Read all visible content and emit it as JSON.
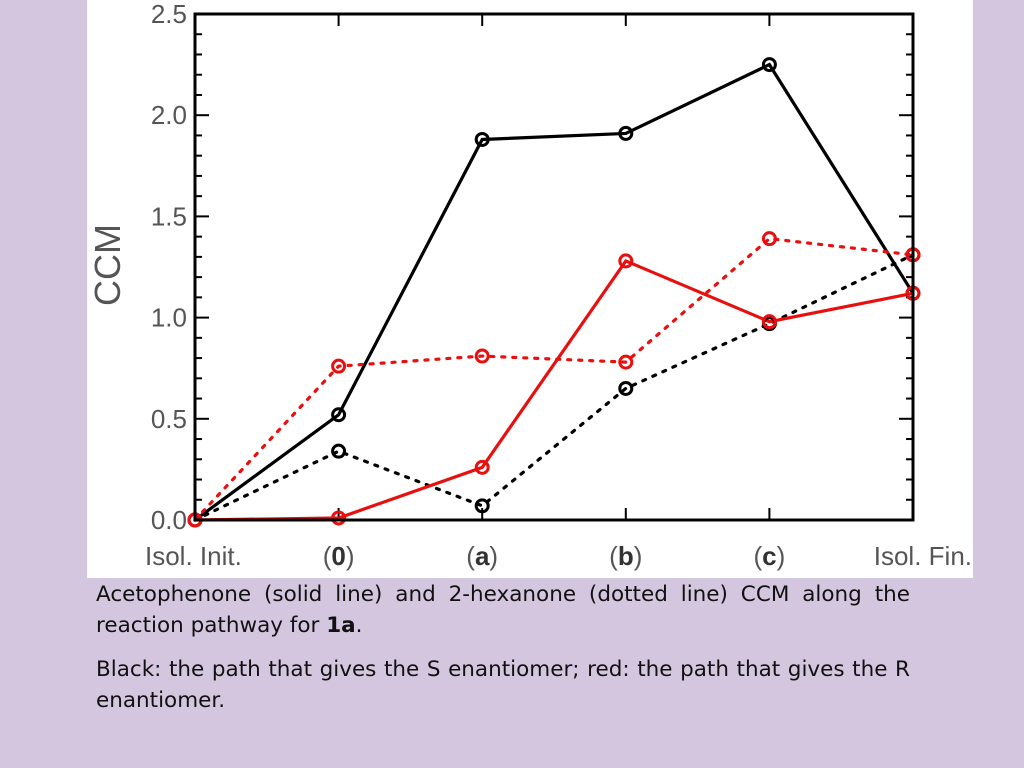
{
  "chart_data": {
    "type": "line",
    "categories": [
      "Isol. Init.",
      "0",
      "a",
      "b",
      "c",
      "Isol. Fin."
    ],
    "category_labels": [
      {
        "pre": "Isol. Init.",
        "bold": "",
        "post": ""
      },
      {
        "pre": "(",
        "bold": "0",
        "post": ")"
      },
      {
        "pre": "(",
        "bold": "a",
        "post": ")"
      },
      {
        "pre": "(",
        "bold": "b",
        "post": ")"
      },
      {
        "pre": "(",
        "bold": "c",
        "post": ")"
      },
      {
        "pre": "Isol. Fin.",
        "bold": "",
        "post": ""
      }
    ],
    "ylabel": "CCM",
    "xlabel": "",
    "title": "",
    "ylim": [
      0,
      2.5
    ],
    "yticks": [
      "0.0",
      "0.5",
      "1.0",
      "1.5",
      "2.0",
      "2.5"
    ],
    "series": [
      {
        "color": "#000000",
        "style": "solid",
        "marker": "open-circle",
        "values": [
          0.0,
          0.52,
          1.88,
          1.91,
          2.25,
          1.12
        ]
      },
      {
        "color": "#000000",
        "style": "dotted",
        "marker": "open-circle",
        "values": [
          0.0,
          0.34,
          0.07,
          0.65,
          0.97,
          1.31
        ]
      },
      {
        "color": "#e8100f",
        "style": "solid",
        "marker": "open-circle",
        "values": [
          0.0,
          0.01,
          0.26,
          1.28,
          0.98,
          1.12
        ]
      },
      {
        "color": "#e8100f",
        "style": "dotted",
        "marker": "open-circle",
        "values": [
          0.0,
          0.76,
          0.81,
          0.78,
          1.39,
          1.31
        ]
      }
    ]
  },
  "caption": {
    "line1_pre": "Acetophenone (solid line) and 2-hexanone (dotted line) CCM along the reaction pathway for ",
    "line1_bold": "1a",
    "line1_post": ".",
    "line2": "Black: the path that gives the S enantiomer; red: the path that gives the R enantiomer."
  }
}
